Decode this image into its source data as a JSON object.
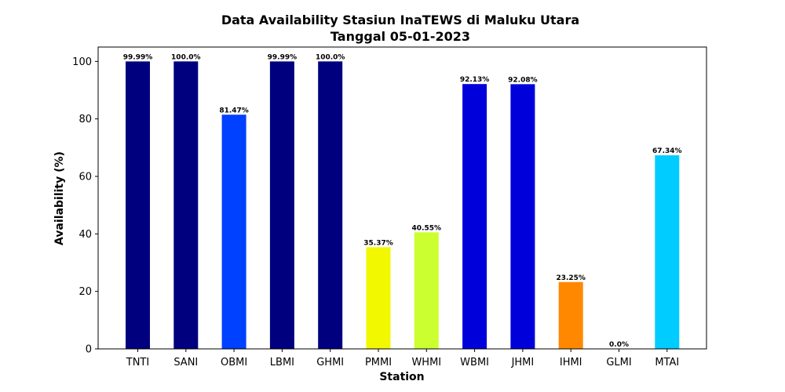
{
  "chart_data": {
    "type": "bar",
    "title_line1": "Data Availability Stasiun InaTEWS di Maluku Utara",
    "title_line2": "Tanggal 05-01-2023",
    "xlabel": "Station",
    "ylabel": "Availability (%)",
    "ylim": [
      0,
      105
    ],
    "yticks": [
      0,
      20,
      40,
      60,
      80,
      100
    ],
    "grid": false,
    "categories": [
      "TNTI",
      "SANI",
      "OBMI",
      "LBMI",
      "GHMI",
      "PMMI",
      "WHMI",
      "WBMI",
      "JHMI",
      "IHMI",
      "GLMI",
      "MTAI"
    ],
    "values": [
      99.99,
      100.0,
      81.47,
      99.99,
      100.0,
      35.37,
      40.55,
      92.13,
      92.08,
      23.25,
      0.0,
      67.34
    ],
    "value_labels": [
      "99.99%",
      "100.0%",
      "81.47%",
      "99.99%",
      "100.0%",
      "35.37%",
      "40.55%",
      "92.13%",
      "92.08%",
      "23.25%",
      "0.0%",
      "67.34%"
    ],
    "colors": [
      "#00007f",
      "#00007f",
      "#0040ff",
      "#00007f",
      "#00007f",
      "#f1f800",
      "#ccff2f",
      "#0000da",
      "#0000da",
      "#ff8800",
      "#7f0000",
      "#00ccff"
    ]
  }
}
